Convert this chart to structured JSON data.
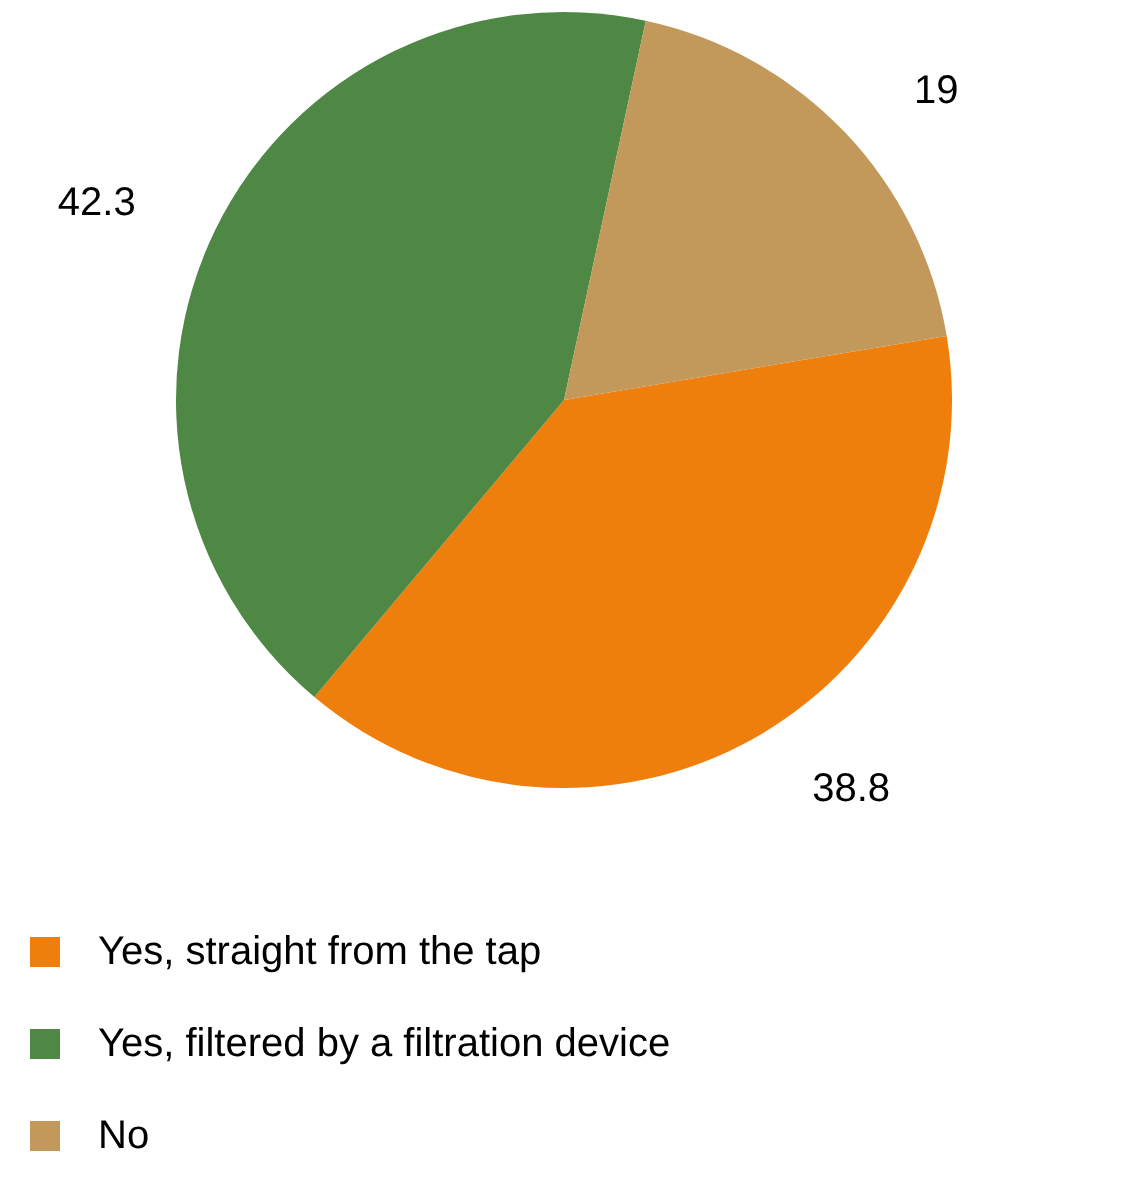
{
  "chart_data": {
    "type": "pie",
    "categories": [
      "Yes, straight from the tap",
      "Yes, filtered by a filtration device",
      "No"
    ],
    "values": [
      38.8,
      42.3,
      19
    ],
    "colors": [
      "#ef7f0c",
      "#4f8744",
      "#c3985b"
    ],
    "data_labels": true,
    "legend": "bottom left"
  }
}
